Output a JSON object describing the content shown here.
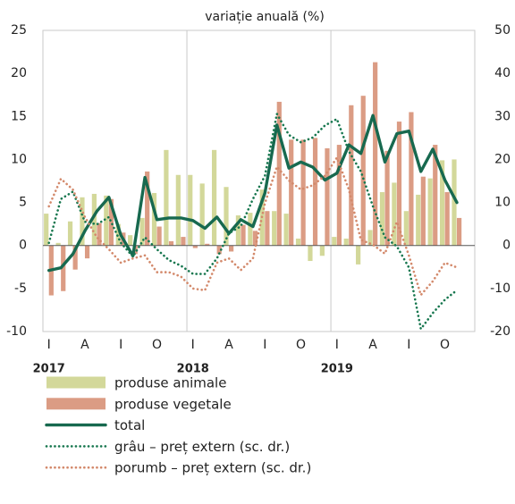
{
  "chart_data": {
    "type": "combo",
    "title": "variație anuală (%)",
    "categories": [
      "I",
      null,
      null,
      "A",
      null,
      null,
      "I",
      null,
      null,
      "O",
      null,
      null,
      "I",
      null,
      null,
      "A",
      null,
      null,
      "I",
      null,
      null,
      "O",
      null,
      null,
      "I",
      null,
      null,
      "A",
      null,
      null,
      "I",
      null,
      null,
      "O",
      null
    ],
    "year_labels": [
      "2017",
      "2018",
      "2019"
    ],
    "ylim": [
      -10,
      25
    ],
    "yticks": [
      -10,
      -5,
      0,
      5,
      10,
      15,
      20,
      25
    ],
    "y2lim": [
      -20,
      50
    ],
    "y2ticks": [
      -20,
      -10,
      0,
      10,
      20,
      30,
      40,
      50
    ],
    "series": [
      {
        "name": "produse animale",
        "style": "bar",
        "color": "#d3d89a",
        "values": [
          3.7,
          0.3,
          2.8,
          5.6,
          6.0,
          5.8,
          2.5,
          1.2,
          3.2,
          6.1,
          11.1,
          8.2,
          8.2,
          7.2,
          11.1,
          6.8,
          3.5,
          3.8,
          6.5,
          4.0,
          3.7,
          0.8,
          -1.8,
          -1.2,
          1.0,
          0.8,
          -2.2,
          1.8,
          6.2,
          7.3,
          4.0,
          5.9,
          7.8,
          9.9,
          10.0
        ]
      },
      {
        "name": "produse vegetale",
        "style": "bar",
        "color": "#db9c84",
        "values": [
          -5.8,
          -5.3,
          -2.8,
          -1.5,
          2.6,
          5.4,
          1.5,
          -1.0,
          8.6,
          2.2,
          0.5,
          1.0,
          -0.3,
          0.2,
          -1.0,
          -0.7,
          2.4,
          1.7,
          4.0,
          16.7,
          12.3,
          12.3,
          12.5,
          11.3,
          11.7,
          16.3,
          17.4,
          21.3,
          11.0,
          14.4,
          15.5,
          8.0,
          11.7,
          6.2,
          3.2
        ]
      },
      {
        "name": "total",
        "style": "line",
        "color": "#17694f",
        "values": [
          -2.9,
          -2.6,
          -1.0,
          1.7,
          4.0,
          5.6,
          1.2,
          -1.2,
          7.9,
          3.0,
          3.2,
          3.2,
          2.9,
          2.0,
          3.3,
          1.4,
          3.0,
          2.2,
          6.1,
          14.0,
          9.0,
          9.7,
          9.1,
          7.6,
          8.4,
          11.7,
          10.7,
          15.1,
          9.7,
          13.0,
          13.3,
          8.6,
          11.2,
          7.6,
          5.0
        ]
      },
      {
        "name": "grâu – preț extern (sc. dr.)",
        "style": "dotted",
        "axis": "y2",
        "color": "#17774f",
        "values": [
          0.6,
          10.8,
          12.5,
          5.5,
          4.9,
          6.6,
          0.6,
          -2.6,
          1.9,
          -0.9,
          -3.4,
          -4.7,
          -6.6,
          -6.6,
          -3.0,
          2.8,
          4.5,
          10.8,
          16.2,
          30.6,
          25.7,
          24.0,
          25.1,
          27.9,
          29.4,
          21.9,
          17.2,
          9.1,
          1.9,
          -0.2,
          -5.1,
          -19.4,
          -15.7,
          -12.6,
          -10.4
        ]
      },
      {
        "name": "porumb – preț extern (sc. dr.)",
        "style": "dotted",
        "axis": "y2",
        "color": "#d3896b",
        "values": [
          9.1,
          15.5,
          13.0,
          6.6,
          1.9,
          -0.9,
          -4.0,
          -3.0,
          -2.3,
          -6.2,
          -6.2,
          -7.2,
          -10.0,
          -10.4,
          -4.0,
          -3.0,
          -5.7,
          -3.0,
          9.8,
          18.3,
          15.1,
          13.0,
          14.0,
          16.2,
          20.4,
          13.0,
          1.3,
          0.2,
          -1.9,
          5.5,
          -2.3,
          -11.5,
          -8.3,
          -4.0,
          -5.1
        ]
      }
    ]
  }
}
